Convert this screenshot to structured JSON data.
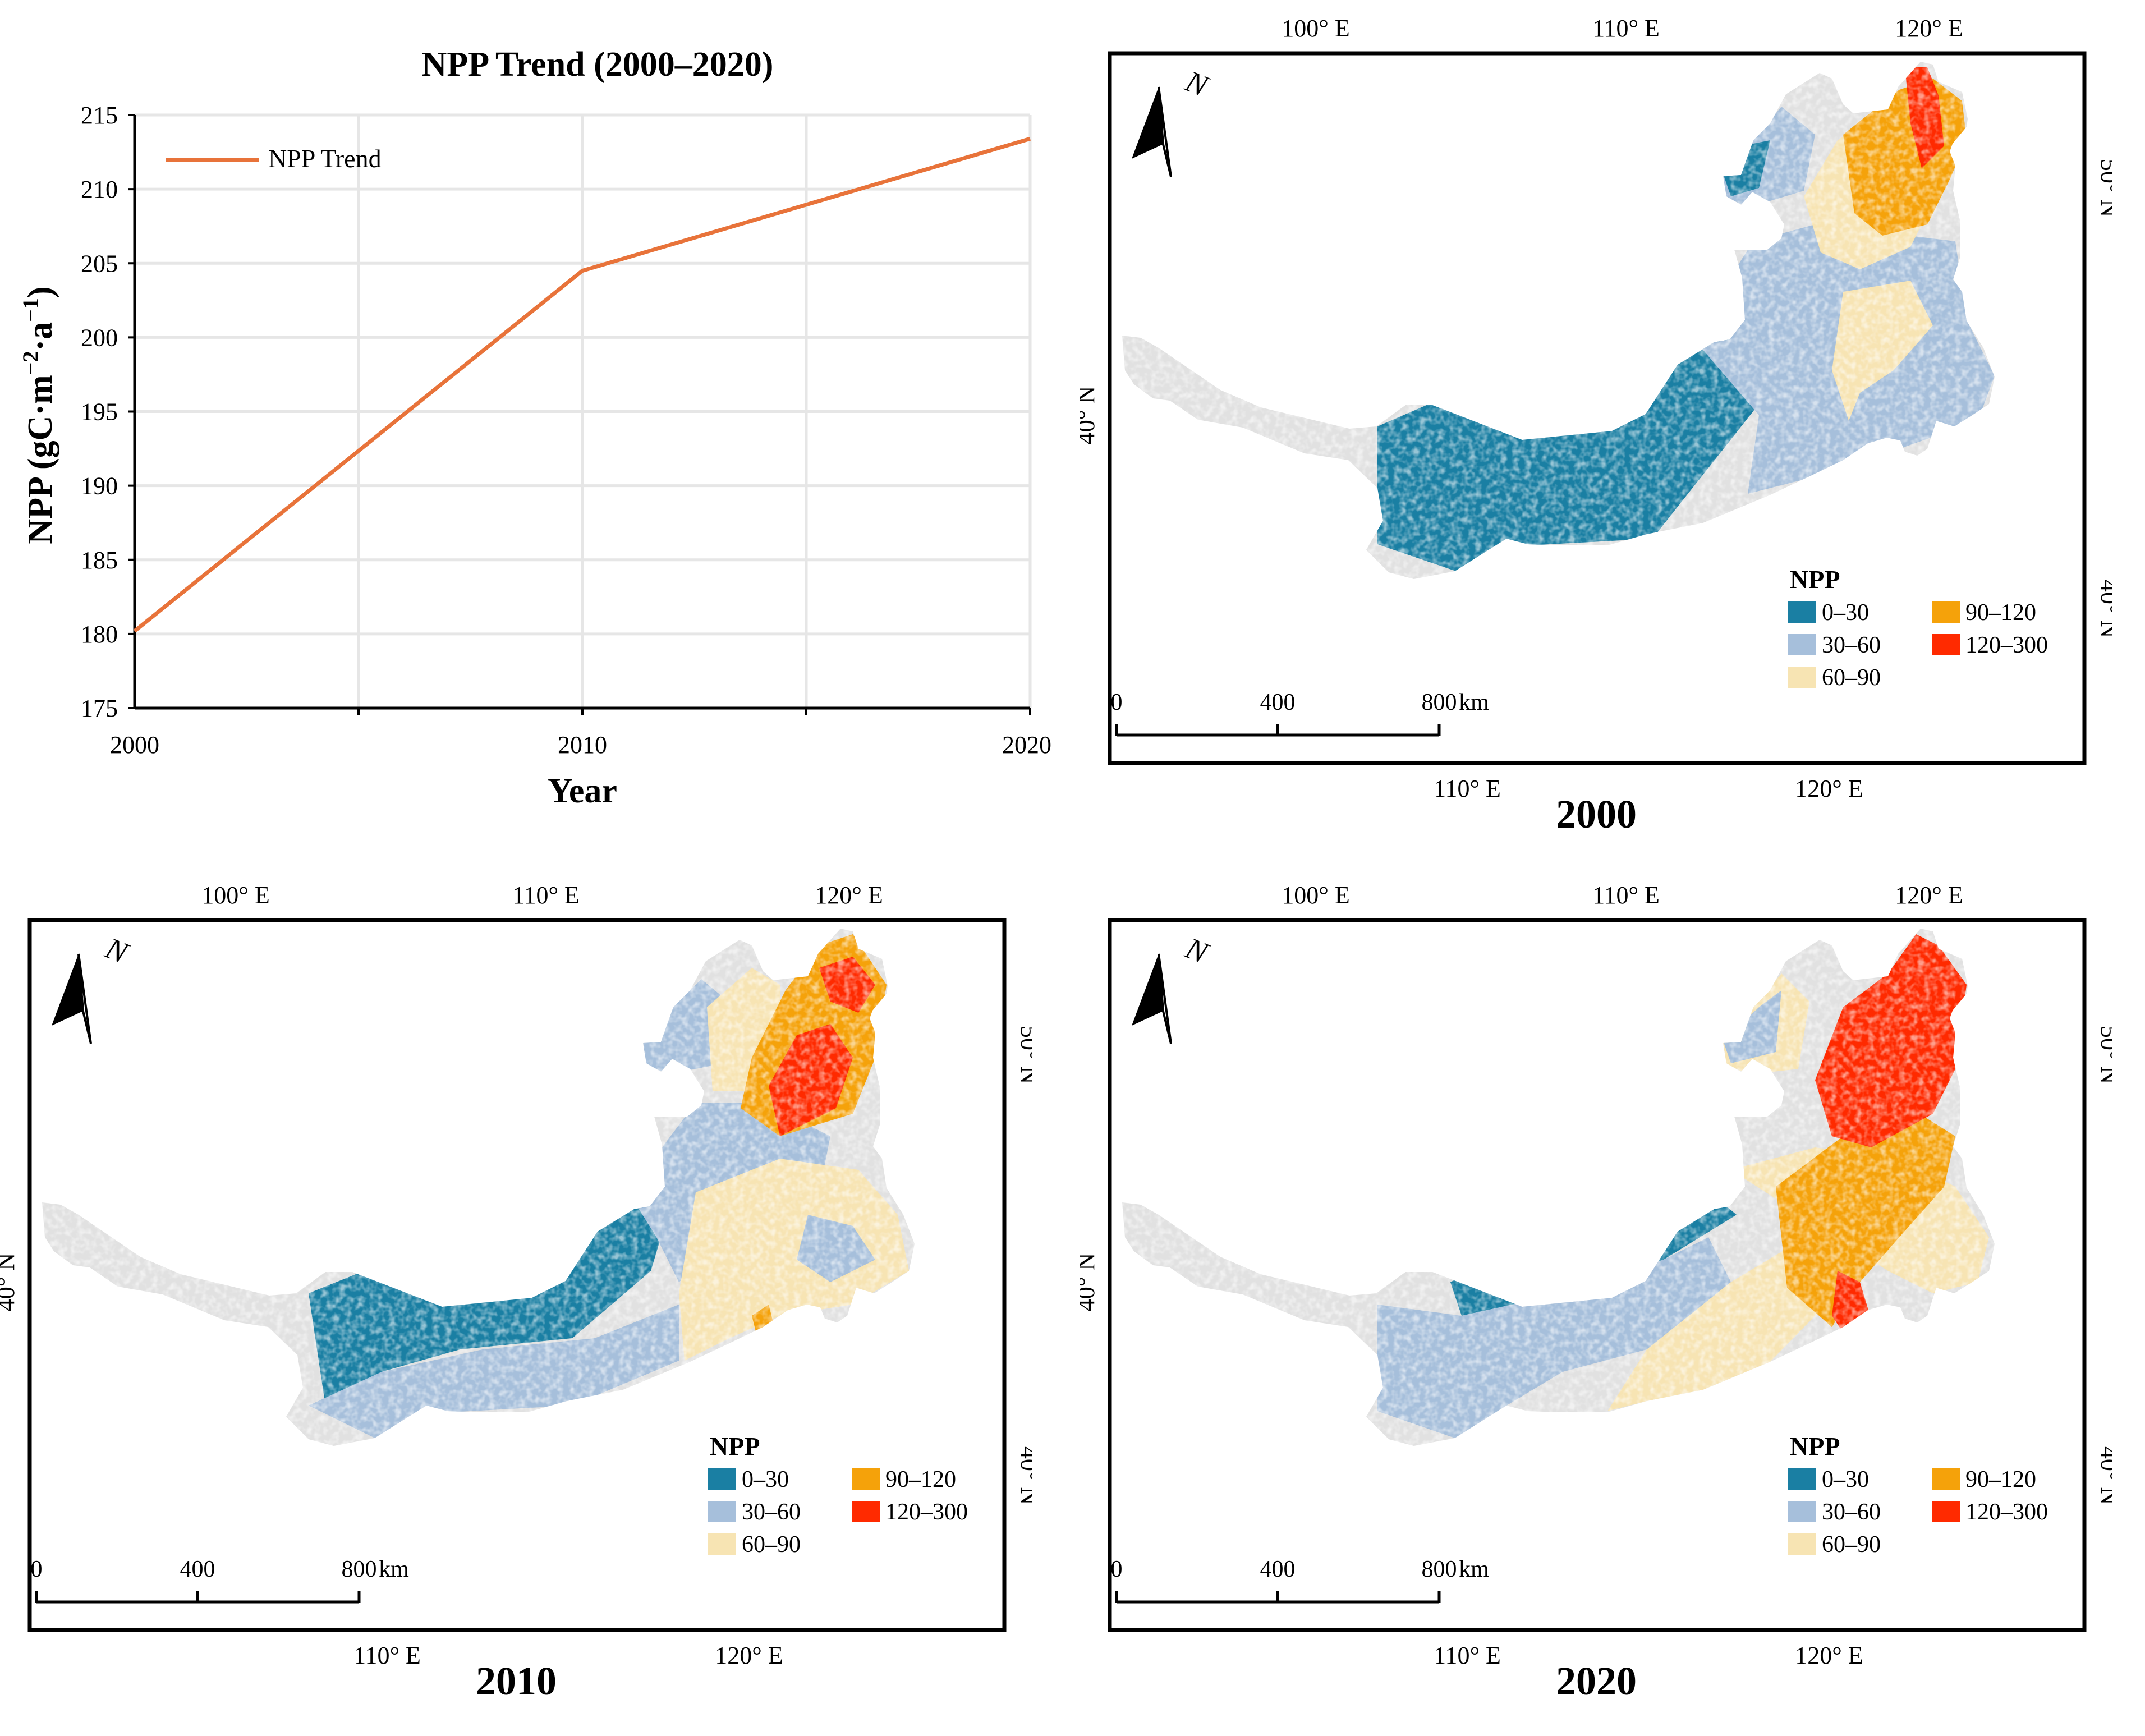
{
  "chart_data": {
    "type": "line",
    "title": "NPP Trend (2000–2020)",
    "xlabel": "Year",
    "ylabel": "NPP (gC·m⁻²·a⁻¹)",
    "ylabel_parts": {
      "base": "NPP (gC·m",
      "sup1": "−2",
      "mid": "·a",
      "sup2": "−1",
      "end": ")"
    },
    "x": [
      2000,
      2010,
      2020
    ],
    "x_ticks": [
      "2000",
      "2010",
      "2020"
    ],
    "y_ticks": [
      "175",
      "180",
      "185",
      "190",
      "195",
      "200",
      "205",
      "210",
      "215"
    ],
    "ylim": [
      175,
      215
    ],
    "xlim": [
      2000,
      2020
    ],
    "grid": true,
    "legend_position": "top-left",
    "series": [
      {
        "name": "NPP Trend",
        "values": [
          180.2,
          204.5,
          213.4
        ],
        "color": "#e8733a"
      }
    ]
  },
  "maps": [
    {
      "year": "2000",
      "lon_top": [
        "100° E",
        "110° E",
        "120° E"
      ],
      "lon_bottom": [
        "110° E",
        "120° E"
      ],
      "lat_left": [
        "40° N"
      ],
      "lat_right": [
        "50° N",
        "40° N"
      ],
      "north": "N",
      "scalebar": {
        "labels": [
          "0",
          "400",
          "800"
        ],
        "unit": "km"
      },
      "legend": {
        "title": "NPP",
        "items": [
          "0–30",
          "30–60",
          "60–90",
          "90–120",
          "120–300"
        ]
      }
    },
    {
      "year": "2010",
      "lon_top": [
        "100° E",
        "110° E",
        "120° E"
      ],
      "lon_bottom": [
        "110° E",
        "120° E"
      ],
      "lat_left": [
        "40° N"
      ],
      "lat_right": [
        "50° N",
        "40° N"
      ],
      "north": "N",
      "scalebar": {
        "labels": [
          "0",
          "400",
          "800"
        ],
        "unit": "km"
      },
      "legend": {
        "title": "NPP",
        "items": [
          "0–30",
          "30–60",
          "60–90",
          "90–120",
          "120–300"
        ]
      }
    },
    {
      "year": "2020",
      "lon_top": [
        "100° E",
        "110° E",
        "120° E"
      ],
      "lon_bottom": [
        "110° E",
        "120° E"
      ],
      "lat_left": [
        "40° N"
      ],
      "lat_right": [
        "50° N",
        "40° N"
      ],
      "north": "N",
      "scalebar": {
        "labels": [
          "0",
          "400",
          "800"
        ],
        "unit": "km"
      },
      "legend": {
        "title": "NPP",
        "items": [
          "0–30",
          "30–60",
          "60–90",
          "90–120",
          "120–300"
        ]
      }
    }
  ],
  "colors": {
    "class_0_30": "#1a7fa3",
    "class_30_60": "#a6bfdb",
    "class_60_90": "#f7e4b3",
    "class_90_120": "#f5a20a",
    "class_120_300": "#ff2a00",
    "nodata": "#e1e1e1",
    "line": "#e8733a",
    "grid": "#e6e6e6"
  }
}
